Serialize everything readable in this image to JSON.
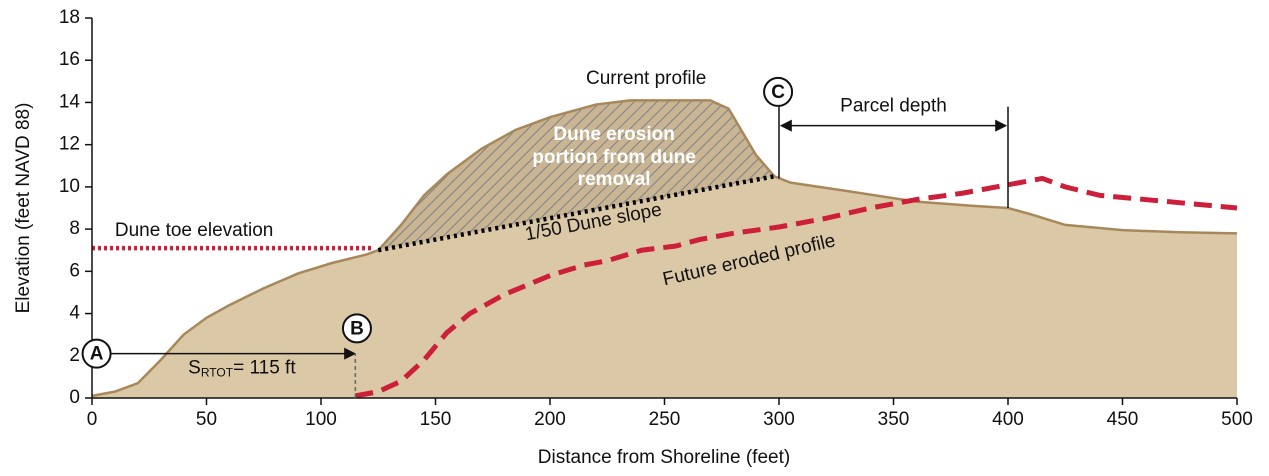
{
  "chart_data": {
    "type": "area",
    "xlabel": "Distance from Shoreline (feet)",
    "ylabel": "Elevation (feet NAVD 88)",
    "xlim": [
      0,
      500
    ],
    "xticks": [
      0,
      50,
      100,
      150,
      200,
      250,
      300,
      350,
      400,
      450,
      500
    ],
    "ylim": [
      0,
      18
    ],
    "yticks": [
      0,
      2,
      4,
      6,
      8,
      10,
      12,
      14,
      16,
      18
    ],
    "series": [
      {
        "name": "Current profile",
        "color": "#a8885a",
        "fill": "#dbc8a6",
        "x": [
          0,
          10,
          20,
          30,
          40,
          50,
          60,
          75,
          90,
          105,
          120,
          125,
          135,
          145,
          155,
          170,
          185,
          200,
          220,
          235,
          250,
          270,
          278,
          290,
          298,
          305,
          330,
          360,
          385,
          400,
          410,
          425,
          450,
          475,
          500
        ],
        "values": [
          0.1,
          0.3,
          0.7,
          1.8,
          3.0,
          3.8,
          4.4,
          5.2,
          5.9,
          6.4,
          6.8,
          7.0,
          8.2,
          9.6,
          10.6,
          11.8,
          12.7,
          13.3,
          13.9,
          14.1,
          14.1,
          14.1,
          13.7,
          11.5,
          10.5,
          10.2,
          9.8,
          9.3,
          9.1,
          9.0,
          8.7,
          8.2,
          7.95,
          7.85,
          7.8
        ]
      },
      {
        "name": "Future eroded profile",
        "color": "#cc1f3a",
        "x": [
          115,
          125,
          135,
          145,
          155,
          165,
          180,
          200,
          215,
          225,
          240,
          255,
          265,
          280,
          300,
          320,
          340,
          360,
          380,
          400,
          410,
          415,
          425,
          440,
          460,
          480,
          500
        ],
        "values": [
          0.1,
          0.3,
          0.8,
          1.8,
          3.1,
          4.0,
          4.9,
          5.8,
          6.3,
          6.5,
          7.0,
          7.2,
          7.5,
          7.8,
          8.1,
          8.5,
          9.0,
          9.4,
          9.7,
          10.1,
          10.3,
          10.4,
          10.0,
          9.6,
          9.4,
          9.2,
          9.0
        ]
      }
    ],
    "dune_toe": {
      "name": "Dune toe elevation",
      "color": "#cc1f3a",
      "x": [
        0,
        123
      ],
      "values": [
        7.1,
        7.1
      ]
    },
    "dune_slope": {
      "name": "1/50 Dune slope",
      "color": "#000000",
      "x": [
        125,
        298
      ],
      "values": [
        7.0,
        10.5
      ]
    },
    "dune_erosion_label": [
      "Dune erosion",
      "portion from dune",
      "removal"
    ],
    "points": [
      {
        "label": "A",
        "x": 2,
        "y": 2.1
      },
      {
        "label": "B",
        "x": 115.7,
        "y": 3.3
      },
      {
        "label": "C",
        "x": 299.6,
        "y": 14.5
      }
    ],
    "setback": {
      "symbol": "S",
      "subscript": "RTOT",
      "text": "= 115 ft"
    },
    "parcel_depth": {
      "label": "Parcel depth",
      "x": [
        300,
        400
      ],
      "y": 12.9
    }
  }
}
